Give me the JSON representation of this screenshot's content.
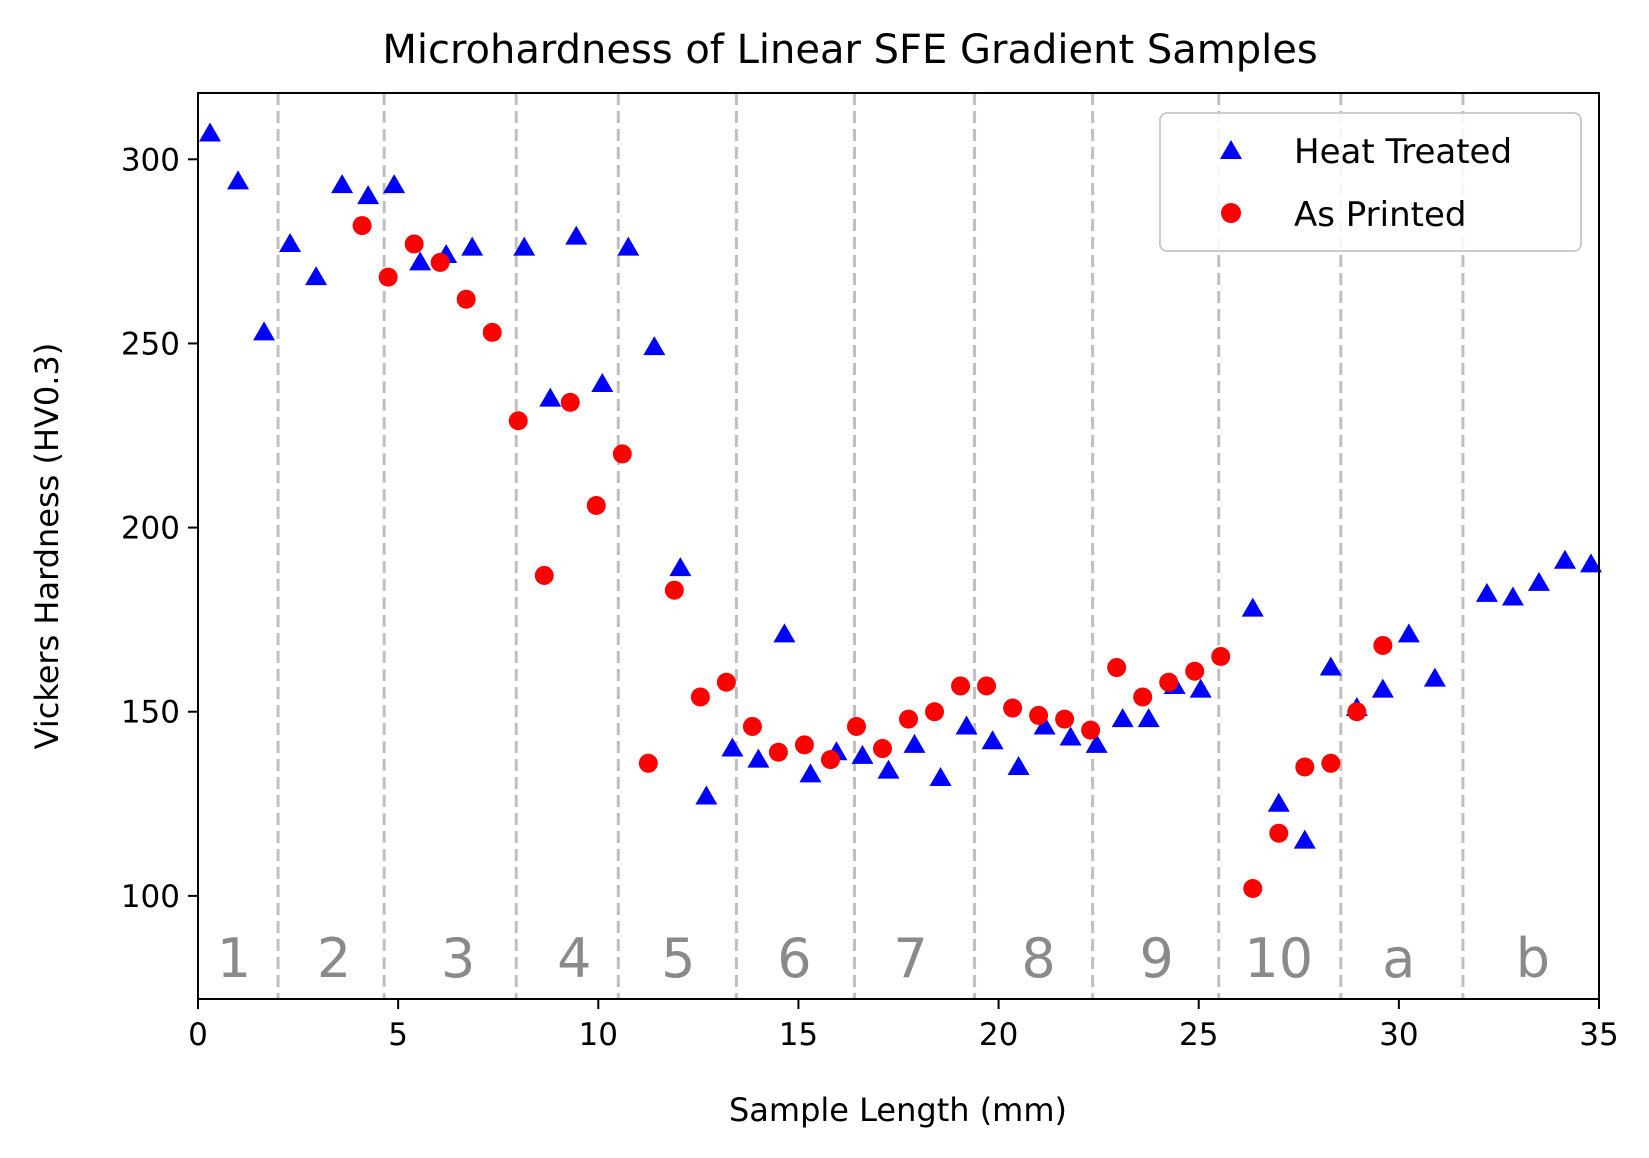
{
  "chart_data": {
    "type": "scatter",
    "title": "Microhardness of Linear SFE Gradient Samples",
    "xlabel": "Sample Length (mm)",
    "ylabel": "Vickers Hardness (HV0.3)",
    "xlim": [
      0,
      35
    ],
    "ylim": [
      72,
      318
    ],
    "xticks": [
      0,
      5,
      10,
      15,
      20,
      25,
      30,
      35
    ],
    "yticks": [
      100,
      150,
      200,
      250,
      300
    ],
    "grid": false,
    "legend_position": "top-right",
    "zone_boundaries": [
      2.0,
      4.65,
      7.95,
      10.5,
      13.45,
      16.4,
      19.4,
      22.35,
      25.5,
      28.55,
      31.6
    ],
    "zones": [
      {
        "label": "1",
        "x": 0.9
      },
      {
        "label": "2",
        "x": 3.4
      },
      {
        "label": "3",
        "x": 6.5
      },
      {
        "label": "4",
        "x": 9.4
      },
      {
        "label": "5",
        "x": 12.0
      },
      {
        "label": "6",
        "x": 14.9
      },
      {
        "label": "7",
        "x": 17.8
      },
      {
        "label": "8",
        "x": 21.0
      },
      {
        "label": "9",
        "x": 23.95
      },
      {
        "label": "10",
        "x": 27.0
      },
      {
        "label": "a",
        "x": 30.0
      },
      {
        "label": "b",
        "x": 33.35
      }
    ],
    "series": [
      {
        "name": "Heat Treated",
        "marker": "triangle",
        "color": "#0000ff",
        "points": [
          [
            0.3,
            307
          ],
          [
            1.0,
            294
          ],
          [
            1.65,
            253
          ],
          [
            2.3,
            277
          ],
          [
            2.95,
            268
          ],
          [
            3.6,
            293
          ],
          [
            4.25,
            290
          ],
          [
            4.9,
            293
          ],
          [
            5.55,
            272
          ],
          [
            6.2,
            274
          ],
          [
            6.85,
            276
          ],
          [
            8.15,
            276
          ],
          [
            8.8,
            235
          ],
          [
            9.45,
            279
          ],
          [
            10.1,
            239
          ],
          [
            10.75,
            276
          ],
          [
            11.4,
            249
          ],
          [
            12.05,
            189
          ],
          [
            12.7,
            127
          ],
          [
            13.35,
            140
          ],
          [
            14.0,
            137
          ],
          [
            14.65,
            171
          ],
          [
            15.3,
            133
          ],
          [
            15.95,
            139
          ],
          [
            16.6,
            138
          ],
          [
            17.25,
            134
          ],
          [
            17.9,
            141
          ],
          [
            18.55,
            132
          ],
          [
            19.2,
            146
          ],
          [
            19.85,
            142
          ],
          [
            20.5,
            135
          ],
          [
            21.15,
            146
          ],
          [
            21.8,
            143
          ],
          [
            22.45,
            141
          ],
          [
            23.1,
            148
          ],
          [
            23.75,
            148
          ],
          [
            24.4,
            157
          ],
          [
            25.05,
            156
          ],
          [
            26.35,
            178
          ],
          [
            27.0,
            125
          ],
          [
            27.65,
            115
          ],
          [
            28.3,
            162
          ],
          [
            28.95,
            151
          ],
          [
            29.6,
            156
          ],
          [
            30.25,
            171
          ],
          [
            30.9,
            159
          ],
          [
            32.2,
            182
          ],
          [
            32.85,
            181
          ],
          [
            33.5,
            185
          ],
          [
            34.15,
            191
          ],
          [
            34.8,
            190
          ]
        ]
      },
      {
        "name": "As Printed",
        "marker": "circle",
        "color": "#ff0000",
        "points": [
          [
            4.1,
            282
          ],
          [
            4.75,
            268
          ],
          [
            5.4,
            277
          ],
          [
            6.05,
            272
          ],
          [
            6.7,
            262
          ],
          [
            7.35,
            253
          ],
          [
            8.0,
            229
          ],
          [
            8.65,
            187
          ],
          [
            9.3,
            234
          ],
          [
            9.95,
            206
          ],
          [
            10.6,
            220
          ],
          [
            11.25,
            136
          ],
          [
            11.9,
            183
          ],
          [
            12.55,
            154
          ],
          [
            13.2,
            158
          ],
          [
            13.85,
            146
          ],
          [
            14.5,
            139
          ],
          [
            15.15,
            141
          ],
          [
            15.8,
            137
          ],
          [
            16.45,
            146
          ],
          [
            17.1,
            140
          ],
          [
            17.75,
            148
          ],
          [
            18.4,
            150
          ],
          [
            19.05,
            157
          ],
          [
            19.7,
            157
          ],
          [
            20.35,
            151
          ],
          [
            21.0,
            149
          ],
          [
            21.65,
            148
          ],
          [
            22.3,
            145
          ],
          [
            22.95,
            162
          ],
          [
            23.6,
            154
          ],
          [
            24.25,
            158
          ],
          [
            24.9,
            161
          ],
          [
            25.55,
            165
          ],
          [
            26.35,
            102
          ],
          [
            27.0,
            117
          ],
          [
            27.65,
            135
          ],
          [
            28.3,
            136
          ],
          [
            28.95,
            150
          ],
          [
            29.6,
            168
          ]
        ]
      }
    ]
  }
}
